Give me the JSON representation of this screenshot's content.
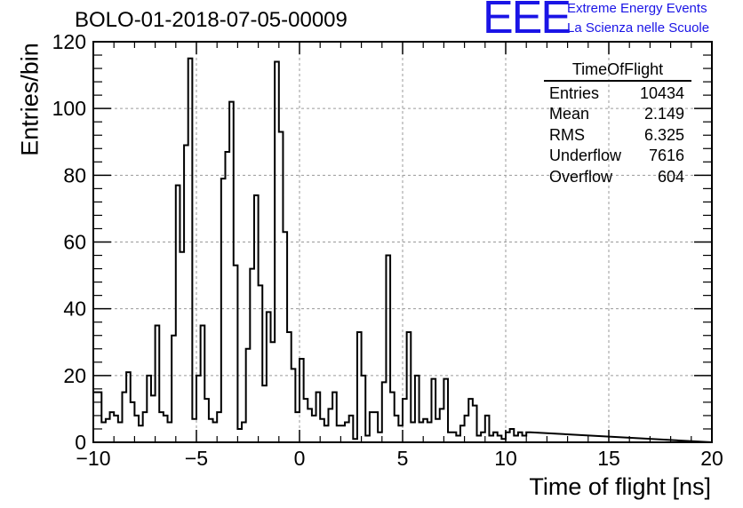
{
  "header": {
    "title": "BOLO-01-2018-07-05-00009",
    "logo_text": "EEE",
    "logo_line1": "Extreme Energy Events",
    "logo_line2": "La Scienza nelle Scuole"
  },
  "stats": {
    "title": "TimeOfFlight",
    "rows": [
      {
        "label": "Entries",
        "value": "10434"
      },
      {
        "label": "Mean",
        "value": "2.149"
      },
      {
        "label": "RMS",
        "value": "6.325"
      },
      {
        "label": "Underflow",
        "value": "7616"
      },
      {
        "label": "Overflow",
        "value": "604"
      }
    ]
  },
  "colors": {
    "line": "#000000",
    "grid": "#9a9a9a",
    "logo": "#1a14e6"
  },
  "chart_data": {
    "type": "histogram",
    "xlabel": "Time of flight [ns]",
    "ylabel": "Entries/bin",
    "xlim": [
      -10,
      20
    ],
    "ylim": [
      0,
      120
    ],
    "xticks": [
      -10,
      -5,
      0,
      5,
      10,
      15,
      20
    ],
    "yticks": [
      0,
      20,
      40,
      60,
      80,
      100,
      120
    ],
    "grid": true,
    "bin_width": 0.2,
    "bin_start": -10,
    "values": [
      15,
      15,
      6,
      7,
      9,
      8,
      6,
      15,
      21,
      12,
      8,
      5,
      9,
      20,
      14,
      35,
      9,
      8,
      6,
      32,
      77,
      57,
      89,
      115,
      7,
      20,
      35,
      13,
      7,
      6,
      9,
      79,
      87,
      102,
      53,
      4,
      6,
      28,
      52,
      74,
      47,
      17,
      39,
      30,
      114,
      93,
      63,
      33,
      22,
      9,
      25,
      13,
      10,
      8,
      15,
      7,
      5,
      10,
      15,
      5,
      5,
      6,
      8,
      1,
      33,
      20,
      2,
      9,
      9,
      3,
      18,
      56,
      15,
      8,
      5,
      13,
      33,
      6,
      20,
      6,
      7,
      6,
      19,
      7,
      10,
      19,
      3,
      3,
      2,
      5,
      8,
      13,
      11,
      2,
      3,
      8,
      2,
      3,
      2,
      1,
      3,
      4,
      2,
      3,
      2,
      3
    ]
  }
}
